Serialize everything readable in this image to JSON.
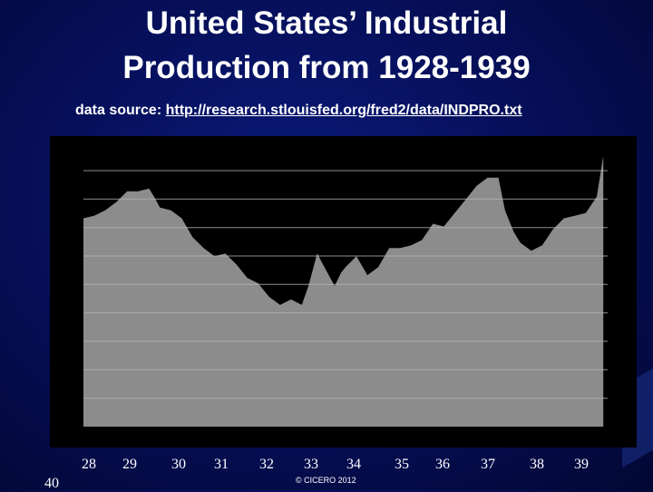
{
  "title_lines": [
    "United States’ Industrial",
    "Production from 1928-1939"
  ],
  "source": {
    "prefix": "data source:",
    "url": "http://research.stlouisfed.org/fred2/data/INDPRO.txt"
  },
  "copyright": "© CICERO 2012",
  "corner_label": "40",
  "colors": {
    "background": "#06105c",
    "panel": "#000000",
    "area": "#8c8c8c",
    "grid": "#b4b4b4",
    "text": "#ffffff"
  },
  "chart_data": {
    "type": "area",
    "title": "United States’ Industrial Production from 1928-1939",
    "xlabel": "",
    "ylabel": "",
    "x_tick_labels": [
      "28",
      "29",
      "30",
      "31",
      "32",
      "33",
      "34",
      "35",
      "36",
      "37",
      "38",
      "39"
    ],
    "x_range": [
      1928,
      1940
    ],
    "y_range": [
      0,
      100
    ],
    "grid": true,
    "gridlines": 9,
    "series": [
      {
        "x": [
          1928.0,
          1928.25,
          1928.5,
          1928.75,
          1929.0,
          1929.25,
          1929.5,
          1929.62,
          1929.75,
          1930.0,
          1930.25,
          1930.5,
          1930.75,
          1931.0,
          1931.25,
          1931.5,
          1931.75,
          1932.0,
          1932.25,
          1932.5,
          1932.75,
          1933.0,
          1933.15,
          1933.35,
          1933.55,
          1933.75,
          1933.9,
          1934.0,
          1934.25,
          1934.5,
          1934.75,
          1935.0,
          1935.25,
          1935.5,
          1935.75,
          1936.0,
          1936.25,
          1936.5,
          1936.75,
          1937.0,
          1937.25,
          1937.5,
          1937.65,
          1937.85,
          1938.0,
          1938.25,
          1938.5,
          1938.75,
          1939.0,
          1939.25,
          1939.5,
          1939.75,
          1939.9
        ],
        "y": [
          77,
          78,
          80,
          83,
          87,
          87,
          88,
          85,
          81,
          80,
          77,
          70,
          66,
          63,
          64,
          60,
          55,
          53,
          48,
          45,
          47,
          45,
          52,
          64,
          58,
          52,
          57,
          59,
          63,
          56,
          59,
          66,
          66,
          67,
          69,
          75,
          74,
          79,
          84,
          89,
          92,
          92,
          80,
          72,
          68,
          65,
          67,
          73,
          77,
          78,
          79,
          85,
          100
        ]
      }
    ]
  }
}
